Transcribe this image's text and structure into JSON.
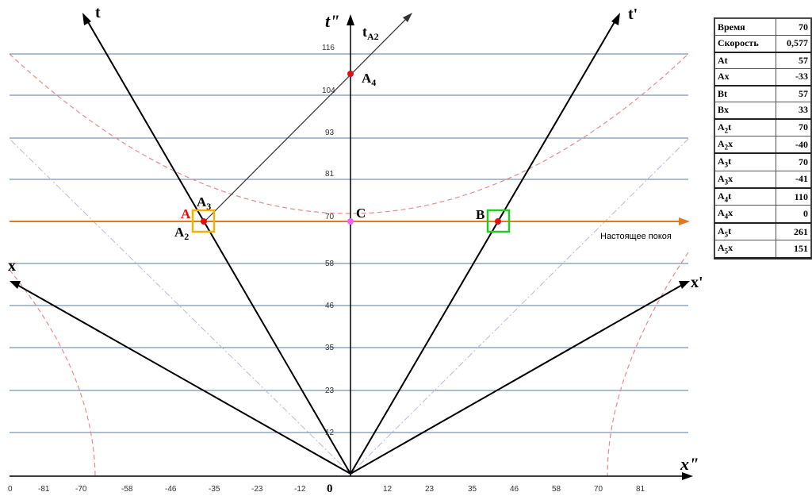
{
  "axes": {
    "t": "t",
    "t_prime": "t'",
    "t_double_prime": "t\"",
    "t_a2": "t",
    "t_a2_sub": "A2",
    "x": "x",
    "x_prime": "x'",
    "x_double_prime": "x\"",
    "origin": "0"
  },
  "y_ticks": [
    "12",
    "23",
    "35",
    "46",
    "58",
    "70",
    "81",
    "93",
    "104",
    "116"
  ],
  "x_ticks_left": [
    "0",
    "-81",
    "-70",
    "-58",
    "-46",
    "-35",
    "-23",
    "-12"
  ],
  "x_ticks_right": [
    "12",
    "23",
    "35",
    "46",
    "58",
    "70",
    "81"
  ],
  "points": {
    "a": "A",
    "a2": "A",
    "a2_sub": "2",
    "a3": "A",
    "a3_sub": "3",
    "a4": "A",
    "a4_sub": "4",
    "b": "B",
    "c": "C"
  },
  "present_line_label": "Настоящее покоя",
  "table": [
    {
      "label": "Время",
      "sub": "",
      "suffix": "",
      "value": "70"
    },
    {
      "label": "Скорость",
      "sub": "",
      "suffix": "",
      "value": "0,577"
    },
    {
      "label": "A",
      "sub": "",
      "suffix": "t",
      "value": "57"
    },
    {
      "label": "A",
      "sub": "",
      "suffix": "x",
      "value": "-33"
    },
    {
      "label": "B",
      "sub": "",
      "suffix": "t",
      "value": "57"
    },
    {
      "label": "B",
      "sub": "",
      "suffix": "x",
      "value": "33"
    },
    {
      "label": "A",
      "sub": "2",
      "suffix": "t",
      "value": "70"
    },
    {
      "label": "A",
      "sub": "2",
      "suffix": "x",
      "value": "-40"
    },
    {
      "label": "A",
      "sub": "3",
      "suffix": "t",
      "value": "70"
    },
    {
      "label": "A",
      "sub": "3",
      "suffix": "x",
      "value": "-41"
    },
    {
      "label": "A",
      "sub": "4",
      "suffix": "t",
      "value": "110"
    },
    {
      "label": "A",
      "sub": "4",
      "suffix": "x",
      "value": "0"
    },
    {
      "label": "A",
      "sub": "5",
      "suffix": "t",
      "value": "261"
    },
    {
      "label": "A",
      "sub": "5",
      "suffix": "x",
      "value": "151"
    }
  ],
  "colors": {
    "grid": "#5a7ba0",
    "present_line": "#e07a1f",
    "hyperbola": "#e88a8a",
    "light_cone": "#b9b9d9",
    "box_a": "#f0b400",
    "box_b": "#22cc22",
    "point": "#e01010",
    "point_c": "#ee66ee"
  }
}
